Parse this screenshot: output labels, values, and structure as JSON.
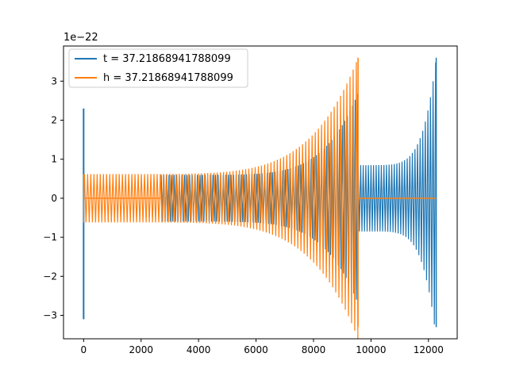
{
  "chart_data": {
    "type": "line",
    "title": "",
    "xlabel": "",
    "ylabel": "",
    "offset_text": "1e−22",
    "xlim": [
      -700,
      13000
    ],
    "ylim": [
      -3.6,
      3.9
    ],
    "xticks": [
      0,
      2000,
      4000,
      6000,
      8000,
      10000,
      12000
    ],
    "xtick_labels": [
      "0",
      "2000",
      "4000",
      "6000",
      "8000",
      "10000",
      "12000"
    ],
    "yticks": [
      -3,
      -2,
      -1,
      0,
      1,
      2,
      3
    ],
    "ytick_labels": [
      "−3",
      "−2",
      "−1",
      "0",
      "1",
      "2",
      "3"
    ],
    "grid": false,
    "legend_position": "top-left",
    "series": [
      {
        "name": "t = 37.21868941788099",
        "color": "#1f77b4",
        "envelope": {
          "start_spike": {
            "x": [
              0,
              0
            ],
            "y": [
              -3.1,
              2.3
            ]
          },
          "segments": [
            {
              "x_start": 2700,
              "x_end": 9550,
              "amp_start": 0.6,
              "amp_end": 2.7
            },
            {
              "x_start": 9550,
              "x_end": 12270,
              "amp_start": 0.85,
              "amp_end": 3.6
            }
          ],
          "end_x": 12270,
          "end_min": -3.3
        }
      },
      {
        "name": "h = 37.21868941788099",
        "color": "#ff7f0e",
        "envelope": {
          "start_x": 0,
          "segments": [
            {
              "x_start": 30,
              "x_end": 9550,
              "amp_start": 0.62,
              "amp_end": 3.6
            }
          ],
          "flat_after": {
            "x_start": 9550,
            "x_end": 12270,
            "y": 0
          },
          "end_min": -3.3
        }
      }
    ]
  }
}
